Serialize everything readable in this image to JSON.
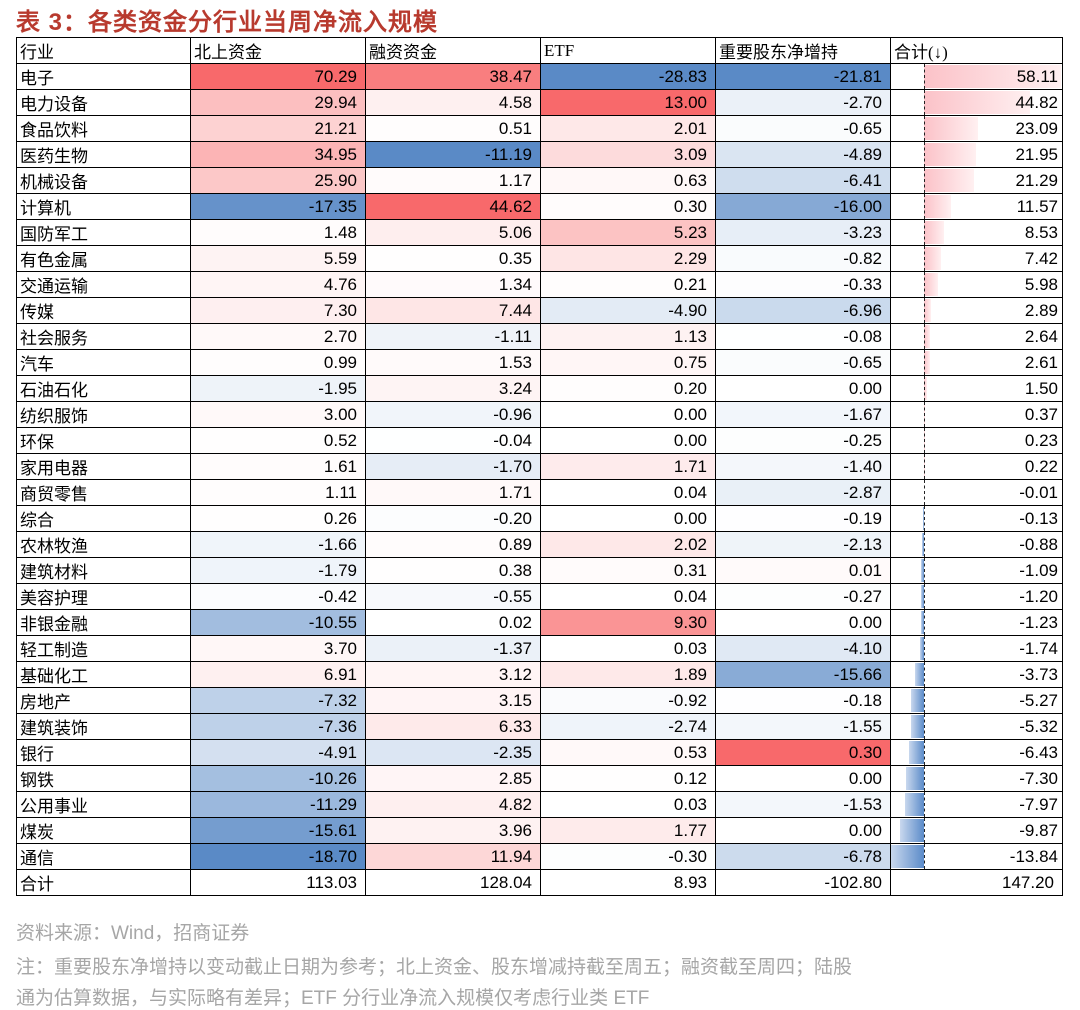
{
  "title": "表 3：各类资金分行业当周净流入规模",
  "table": {
    "header": [
      "行业",
      "北上资金",
      "融资资金",
      "ETF",
      "重要股东净增持",
      "合计(↓)"
    ],
    "rows": [
      [
        "电子",
        "70.29",
        "38.47",
        "-28.83",
        "-21.81",
        "58.11"
      ],
      [
        "电力设备",
        "29.94",
        "4.58",
        "13.00",
        "-2.70",
        "44.82"
      ],
      [
        "食品饮料",
        "21.21",
        "0.51",
        "2.01",
        "-0.65",
        "23.09"
      ],
      [
        "医药生物",
        "34.95",
        "-11.19",
        "3.09",
        "-4.89",
        "21.95"
      ],
      [
        "机械设备",
        "25.90",
        "1.17",
        "0.63",
        "-6.41",
        "21.29"
      ],
      [
        "计算机",
        "-17.35",
        "44.62",
        "0.30",
        "-16.00",
        "11.57"
      ],
      [
        "国防军工",
        "1.48",
        "5.06",
        "5.23",
        "-3.23",
        "8.53"
      ],
      [
        "有色金属",
        "5.59",
        "0.35",
        "2.29",
        "-0.82",
        "7.42"
      ],
      [
        "交通运输",
        "4.76",
        "1.34",
        "0.21",
        "-0.33",
        "5.98"
      ],
      [
        "传媒",
        "7.30",
        "7.44",
        "-4.90",
        "-6.96",
        "2.89"
      ],
      [
        "社会服务",
        "2.70",
        "-1.11",
        "1.13",
        "-0.08",
        "2.64"
      ],
      [
        "汽车",
        "0.99",
        "1.53",
        "0.75",
        "-0.65",
        "2.61"
      ],
      [
        "石油石化",
        "-1.95",
        "3.24",
        "0.20",
        "0.00",
        "1.50"
      ],
      [
        "纺织服饰",
        "3.00",
        "-0.96",
        "0.00",
        "-1.67",
        "0.37"
      ],
      [
        "环保",
        "0.52",
        "-0.04",
        "0.00",
        "-0.25",
        "0.23"
      ],
      [
        "家用电器",
        "1.61",
        "-1.70",
        "1.71",
        "-1.40",
        "0.22"
      ],
      [
        "商贸零售",
        "1.11",
        "1.71",
        "0.04",
        "-2.87",
        "-0.01"
      ],
      [
        "综合",
        "0.26",
        "-0.20",
        "0.00",
        "-0.19",
        "-0.13"
      ],
      [
        "农林牧渔",
        "-1.66",
        "0.89",
        "2.02",
        "-2.13",
        "-0.88"
      ],
      [
        "建筑材料",
        "-1.79",
        "0.38",
        "0.31",
        "0.01",
        "-1.09"
      ],
      [
        "美容护理",
        "-0.42",
        "-0.55",
        "0.04",
        "-0.27",
        "-1.20"
      ],
      [
        "非银金融",
        "-10.55",
        "0.02",
        "9.30",
        "0.00",
        "-1.23"
      ],
      [
        "轻工制造",
        "3.70",
        "-1.37",
        "0.03",
        "-4.10",
        "-1.74"
      ],
      [
        "基础化工",
        "6.91",
        "3.12",
        "1.89",
        "-15.66",
        "-3.73"
      ],
      [
        "房地产",
        "-7.32",
        "3.15",
        "-0.92",
        "-0.18",
        "-5.27"
      ],
      [
        "建筑装饰",
        "-7.36",
        "6.33",
        "-2.74",
        "-1.55",
        "-5.32"
      ],
      [
        "银行",
        "-4.91",
        "-2.35",
        "0.53",
        "0.30",
        "-6.43"
      ],
      [
        "钢铁",
        "-10.26",
        "2.85",
        "0.12",
        "0.00",
        "-7.30"
      ],
      [
        "公用事业",
        "-11.29",
        "4.82",
        "0.03",
        "-1.53",
        "-7.97"
      ],
      [
        "煤炭",
        "-15.61",
        "3.96",
        "1.77",
        "0.00",
        "-9.87"
      ],
      [
        "通信",
        "-18.70",
        "11.94",
        "-0.30",
        "-6.78",
        "-13.84"
      ]
    ],
    "total": [
      "合计",
      "113.03",
      "128.04",
      "8.93",
      "-102.80",
      "147.20"
    ]
  },
  "source": "资料来源：Wind，招商证券",
  "notes": [
    "注：重要股东净增持以变动截止日期为参考；北上资金、股东增减持截至周五；融资截至周四；陆股",
    "通为估算数据，与实际略有差异；ETF 分行业净流入规模仅考虑行业类 ETF"
  ]
}
